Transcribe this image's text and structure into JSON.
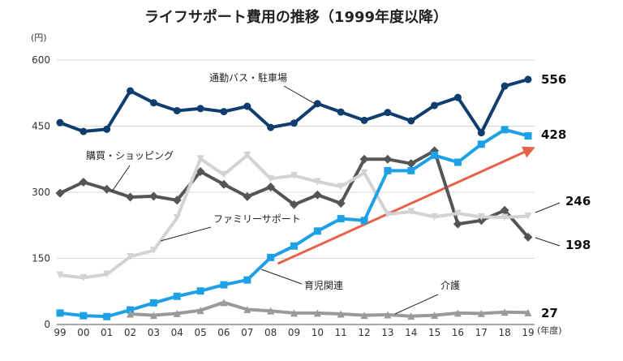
{
  "chart_data": {
    "type": "line",
    "title": "ライフサポート費用の推移（1999年度以降）",
    "y_unit": "(円)",
    "x_unit": "(年度)",
    "ylim": [
      0,
      600
    ],
    "y_ticks": [
      0,
      150,
      300,
      450,
      600
    ],
    "categories": [
      "99",
      "00",
      "01",
      "02",
      "03",
      "04",
      "05",
      "06",
      "07",
      "08",
      "09",
      "10",
      "11",
      "12",
      "13",
      "14",
      "15",
      "16",
      "17",
      "18",
      "19"
    ],
    "grid": "horizontal",
    "series": [
      {
        "name": "通勤バス・駐車場",
        "color": "#0f3d6e",
        "marker": "circle",
        "end_label": "556",
        "values": [
          458,
          438,
          443,
          530,
          503,
          485,
          490,
          483,
          495,
          447,
          457,
          501,
          482,
          463,
          481,
          462,
          497,
          515,
          435,
          541,
          556
        ]
      },
      {
        "name": "購買・ショッピング",
        "color": "#555555",
        "marker": "diamond",
        "end_label": "198",
        "values": [
          298,
          323,
          307,
          289,
          291,
          282,
          347,
          318,
          290,
          312,
          272,
          294,
          275,
          375,
          375,
          365,
          394,
          228,
          236,
          259,
          198
        ]
      },
      {
        "name": "ファミリーサポート",
        "color": "#d3d3d3",
        "marker": "triangle-down",
        "end_label": "246",
        "values": [
          112,
          106,
          114,
          154,
          168,
          242,
          376,
          340,
          384,
          331,
          338,
          324,
          313,
          344,
          250,
          256,
          244,
          252,
          244,
          243,
          246
        ]
      },
      {
        "name": "育児関連",
        "color": "#1ea0e6",
        "marker": "square",
        "end_label": "428",
        "values": [
          26,
          20,
          18,
          33,
          49,
          64,
          76,
          90,
          101,
          152,
          178,
          212,
          240,
          236,
          349,
          349,
          384,
          368,
          409,
          442,
          428
        ]
      },
      {
        "name": "介護",
        "color": "#9a9a9a",
        "marker": "triangle",
        "end_label": "27",
        "values": [
          null,
          null,
          null,
          24,
          21,
          25,
          32,
          50,
          34,
          31,
          26,
          26,
          24,
          21,
          22,
          19,
          21,
          26,
          25,
          28,
          27
        ]
      }
    ],
    "trend_arrow": {
      "color": "#e8624a",
      "from": {
        "x": "09",
        "y": 138
      },
      "to": {
        "x": "19",
        "y": 400
      }
    }
  }
}
